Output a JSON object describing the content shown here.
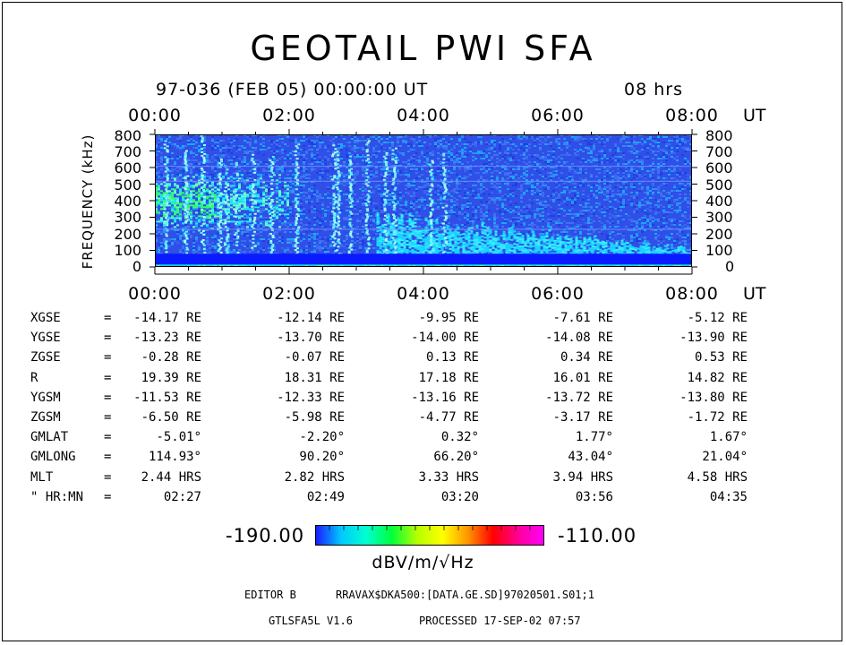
{
  "chart_data": {
    "type": "heatmap",
    "title": "GEOTAIL PWI SFA",
    "subtitle_left": "97-036 (FEB 05) 00:00:00 UT",
    "subtitle_right": "08 hrs",
    "x_ticks": [
      "00:00",
      "02:00",
      "04:00",
      "06:00",
      "08:00"
    ],
    "x_unit": "UT",
    "ylabel": "FREQUENCY (kHz)",
    "y_ticks": [
      "800",
      "700",
      "600",
      "500",
      "400",
      "300",
      "200",
      "100",
      "0"
    ],
    "xlim_hours": [
      0,
      8
    ],
    "ylim_khz": [
      0,
      800
    ],
    "colorbar": {
      "min_label": "-190.00",
      "max_label": "-110.00",
      "unit": "dBV/m/√Hz",
      "colors": [
        "#1a1aff",
        "#00c8ff",
        "#00ffd2",
        "#00ff3c",
        "#b4ff00",
        "#ffff00",
        "#ff9600",
        "#ff0000",
        "#ff0096",
        "#ff00ff"
      ]
    },
    "features": {
      "background_band_khz": [
        80,
        800
      ],
      "strong_low_band_khz": [
        15,
        80
      ],
      "lowest_band_khz": [
        0,
        15
      ],
      "broadband_emission_hours": [
        0,
        2.0
      ],
      "broadband_peak_khz": 400,
      "diffuse_emission_hours": [
        3.3,
        8.0
      ],
      "diffuse_emission_top_khz": [
        320,
        110
      ],
      "bursts_hours": [
        0.15,
        0.45,
        0.7,
        0.95,
        1.05,
        1.2,
        1.45,
        1.72,
        2.1,
        2.65,
        2.72,
        2.9,
        3.15,
        3.42,
        3.55,
        4.1,
        4.3
      ]
    }
  },
  "ephemeris": {
    "rows": [
      {
        "label": "XGSE",
        "eq": "=",
        "values": [
          "-14.17 RE",
          "-12.14 RE",
          "-9.95 RE",
          "-7.61 RE",
          "-5.12 RE"
        ]
      },
      {
        "label": "YGSE",
        "eq": "=",
        "values": [
          "-13.23 RE",
          "-13.70 RE",
          "-14.00 RE",
          "-14.08 RE",
          "-13.90 RE"
        ]
      },
      {
        "label": "ZGSE",
        "eq": "=",
        "values": [
          "-0.28 RE",
          "-0.07 RE",
          "0.13 RE",
          "0.34 RE",
          "0.53 RE"
        ]
      },
      {
        "label": "R",
        "eq": "=",
        "values": [
          "19.39 RE",
          "18.31 RE",
          "17.18 RE",
          "16.01 RE",
          "14.82 RE"
        ]
      },
      {
        "label": "YGSM",
        "eq": "=",
        "values": [
          "-11.53 RE",
          "-12.33 RE",
          "-13.16 RE",
          "-13.72 RE",
          "-13.80 RE"
        ]
      },
      {
        "label": "ZGSM",
        "eq": "=",
        "values": [
          "-6.50 RE",
          "-5.98 RE",
          "-4.77 RE",
          "-3.17 RE",
          "-1.72 RE"
        ]
      },
      {
        "label": "GMLAT",
        "eq": "=",
        "values": [
          "-5.01°",
          "-2.20°",
          "0.32°",
          "1.77°",
          "1.67°"
        ]
      },
      {
        "label": "GMLONG",
        "eq": "=",
        "values": [
          "114.93°",
          "90.20°",
          "66.20°",
          "43.04°",
          "21.04°"
        ]
      },
      {
        "label": "MLT",
        "eq": "=",
        "values": [
          "2.44 HRS",
          "2.82 HRS",
          "3.33 HRS",
          "3.94 HRS",
          "4.58 HRS"
        ]
      },
      {
        "label": "\" HR:MN",
        "eq": "=",
        "values": [
          "02:27",
          "02:49",
          "03:20",
          "03:56",
          "04:35"
        ]
      }
    ]
  },
  "footer": {
    "editor": "EDITOR B",
    "path": "RRAVAX$DKA500:[DATA.GE.SD]97020501.S01;1",
    "program": "GTLSFA5L V1.6",
    "processed": "PROCESSED 17-SEP-02  07:57"
  }
}
